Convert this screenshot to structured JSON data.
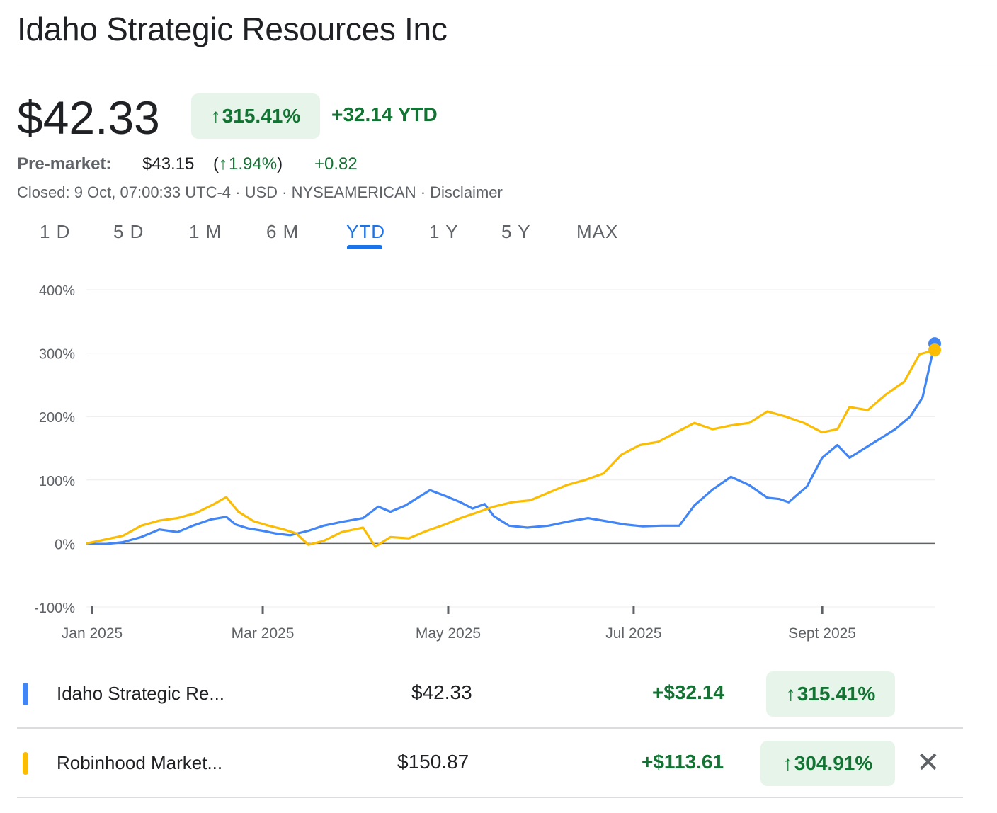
{
  "company": "Idaho Strategic Resources Inc",
  "price": "$42.33",
  "change_pct": "315.41%",
  "change_abs": "+32.14 YTD",
  "premarket": {
    "label": "Pre-market:",
    "price": "$43.15",
    "pct": "1.94%",
    "abs": "+0.82"
  },
  "meta": "Closed: 9 Oct, 07:00:33 UTC-4 · USD · NYSEAMERICAN · Disclaimer",
  "tabs": [
    "1 D",
    "5 D",
    "1 M",
    "6 M",
    "YTD",
    "1 Y",
    "5 Y",
    "MAX"
  ],
  "active_tab": "YTD",
  "colors": {
    "idaho": "#4285f4",
    "robinhood": "#fbbc04",
    "up": "#137333",
    "up_bg": "#e6f4ea",
    "active": "#1a73e8"
  },
  "comparisons": [
    {
      "name": "Idaho Strategic Re...",
      "price": "$42.33",
      "abs": "+$32.14",
      "pct": "315.41%",
      "color": "#4285f4",
      "removable": false
    },
    {
      "name": "Robinhood Market...",
      "price": "$150.87",
      "abs": "+$113.61",
      "pct": "304.91%",
      "color": "#fbbc04",
      "removable": true
    }
  ],
  "chart_data": {
    "type": "line",
    "ylim": [
      -100,
      400
    ],
    "y_ticks": [
      "400%",
      "300%",
      "200%",
      "100%",
      "0%",
      "-100%"
    ],
    "y_tick_values": [
      400,
      300,
      200,
      100,
      0,
      -100
    ],
    "x_ticks": [
      "Jan 2025",
      "Mar 2025",
      "May 2025",
      "Jul 2025",
      "Sept 2025"
    ],
    "x_tick_dates": [
      "2025-01-01",
      "2025-03-01",
      "2025-05-01",
      "2025-07-01",
      "2025-09-01"
    ],
    "x_range": [
      "2025-01-02",
      "2025-10-08"
    ],
    "grid": true,
    "series": [
      {
        "name": "Idaho Strategic Re...",
        "color": "#4285f4",
        "points": [
          [
            "2025-01-02",
            0
          ],
          [
            "2025-01-08",
            -1
          ],
          [
            "2025-01-14",
            2
          ],
          [
            "2025-01-20",
            10
          ],
          [
            "2025-01-26",
            22
          ],
          [
            "2025-02-01",
            18
          ],
          [
            "2025-02-06",
            28
          ],
          [
            "2025-02-12",
            38
          ],
          [
            "2025-02-17",
            42
          ],
          [
            "2025-02-20",
            30
          ],
          [
            "2025-02-24",
            24
          ],
          [
            "2025-03-01",
            20
          ],
          [
            "2025-03-05",
            16
          ],
          [
            "2025-03-10",
            13
          ],
          [
            "2025-03-16",
            20
          ],
          [
            "2025-03-21",
            28
          ],
          [
            "2025-03-27",
            34
          ],
          [
            "2025-04-03",
            40
          ],
          [
            "2025-04-08",
            58
          ],
          [
            "2025-04-12",
            50
          ],
          [
            "2025-04-17",
            60
          ],
          [
            "2025-04-21",
            72
          ],
          [
            "2025-04-25",
            84
          ],
          [
            "2025-04-30",
            75
          ],
          [
            "2025-05-05",
            65
          ],
          [
            "2025-05-09",
            55
          ],
          [
            "2025-05-13",
            62
          ],
          [
            "2025-05-16",
            43
          ],
          [
            "2025-05-21",
            28
          ],
          [
            "2025-05-27",
            25
          ],
          [
            "2025-06-03",
            28
          ],
          [
            "2025-06-10",
            35
          ],
          [
            "2025-06-16",
            40
          ],
          [
            "2025-06-22",
            35
          ],
          [
            "2025-06-28",
            30
          ],
          [
            "2025-07-04",
            27
          ],
          [
            "2025-07-10",
            28
          ],
          [
            "2025-07-16",
            28
          ],
          [
            "2025-07-21",
            60
          ],
          [
            "2025-07-27",
            85
          ],
          [
            "2025-08-02",
            105
          ],
          [
            "2025-08-08",
            92
          ],
          [
            "2025-08-14",
            72
          ],
          [
            "2025-08-18",
            70
          ],
          [
            "2025-08-21",
            65
          ],
          [
            "2025-08-27",
            90
          ],
          [
            "2025-09-01",
            135
          ],
          [
            "2025-09-06",
            155
          ],
          [
            "2025-09-10",
            135
          ],
          [
            "2025-09-15",
            150
          ],
          [
            "2025-09-20",
            165
          ],
          [
            "2025-09-25",
            180
          ],
          [
            "2025-09-30",
            200
          ],
          [
            "2025-10-04",
            230
          ],
          [
            "2025-10-08",
            315
          ]
        ]
      },
      {
        "name": "Robinhood Market...",
        "color": "#fbbc04",
        "points": [
          [
            "2025-01-02",
            0
          ],
          [
            "2025-01-08",
            6
          ],
          [
            "2025-01-14",
            12
          ],
          [
            "2025-01-20",
            28
          ],
          [
            "2025-01-26",
            36
          ],
          [
            "2025-02-01",
            40
          ],
          [
            "2025-02-07",
            48
          ],
          [
            "2025-02-13",
            62
          ],
          [
            "2025-02-17",
            73
          ],
          [
            "2025-02-21",
            50
          ],
          [
            "2025-02-26",
            35
          ],
          [
            "2025-03-03",
            28
          ],
          [
            "2025-03-08",
            22
          ],
          [
            "2025-03-12",
            16
          ],
          [
            "2025-03-16",
            -2
          ],
          [
            "2025-03-21",
            4
          ],
          [
            "2025-03-27",
            18
          ],
          [
            "2025-04-03",
            25
          ],
          [
            "2025-04-07",
            -5
          ],
          [
            "2025-04-12",
            10
          ],
          [
            "2025-04-18",
            8
          ],
          [
            "2025-04-24",
            20
          ],
          [
            "2025-04-30",
            30
          ],
          [
            "2025-05-05",
            40
          ],
          [
            "2025-05-10",
            48
          ],
          [
            "2025-05-16",
            58
          ],
          [
            "2025-05-22",
            65
          ],
          [
            "2025-05-28",
            68
          ],
          [
            "2025-06-03",
            80
          ],
          [
            "2025-06-09",
            92
          ],
          [
            "2025-06-15",
            100
          ],
          [
            "2025-06-21",
            110
          ],
          [
            "2025-06-27",
            140
          ],
          [
            "2025-07-03",
            155
          ],
          [
            "2025-07-09",
            160
          ],
          [
            "2025-07-15",
            175
          ],
          [
            "2025-07-21",
            190
          ],
          [
            "2025-07-27",
            180
          ],
          [
            "2025-08-02",
            186
          ],
          [
            "2025-08-08",
            190
          ],
          [
            "2025-08-14",
            208
          ],
          [
            "2025-08-20",
            200
          ],
          [
            "2025-08-26",
            190
          ],
          [
            "2025-09-01",
            175
          ],
          [
            "2025-09-06",
            180
          ],
          [
            "2025-09-10",
            215
          ],
          [
            "2025-09-16",
            210
          ],
          [
            "2025-09-22",
            235
          ],
          [
            "2025-09-28",
            255
          ],
          [
            "2025-10-03",
            298
          ],
          [
            "2025-10-08",
            305
          ]
        ]
      }
    ]
  }
}
